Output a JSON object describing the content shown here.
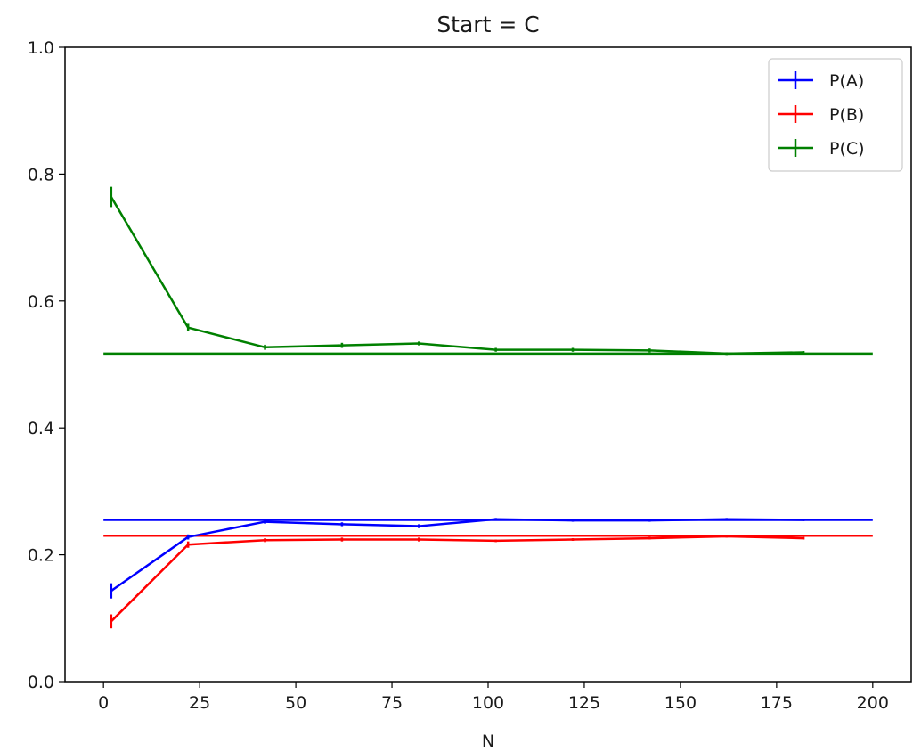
{
  "chart_data": {
    "type": "line",
    "title": "Start = C",
    "xlabel": "N",
    "ylabel": "",
    "xlim": [
      -10,
      210
    ],
    "ylim": [
      0,
      1.0
    ],
    "xticks": [
      0,
      25,
      50,
      75,
      100,
      125,
      150,
      175,
      200
    ],
    "yticks": [
      0.0,
      0.2,
      0.4,
      0.6,
      0.8,
      1.0
    ],
    "xtick_labels": [
      "0",
      "25",
      "50",
      "75",
      "100",
      "125",
      "150",
      "175",
      "200"
    ],
    "ytick_labels": [
      "0.0",
      "0.2",
      "0.4",
      "0.6",
      "0.8",
      "1.0"
    ],
    "grid": false,
    "legend_position": "top-right",
    "x": [
      2,
      22,
      42,
      62,
      82,
      102,
      122,
      142,
      162,
      182
    ],
    "series": [
      {
        "name": "P(A)",
        "color": "#0000ff",
        "values": [
          0.143,
          0.228,
          0.252,
          0.248,
          0.245,
          0.256,
          0.254,
          0.254,
          0.256,
          0.255
        ],
        "errors": [
          0.012,
          0.004,
          0.003,
          0.003,
          0.003,
          0.002,
          0.002,
          0.002,
          0.002,
          0.002
        ],
        "reference": 0.255
      },
      {
        "name": "P(B)",
        "color": "#ff0000",
        "values": [
          0.095,
          0.216,
          0.223,
          0.224,
          0.224,
          0.222,
          0.224,
          0.226,
          0.229,
          0.226
        ],
        "errors": [
          0.011,
          0.005,
          0.003,
          0.003,
          0.003,
          0.002,
          0.002,
          0.002,
          0.002,
          0.002
        ],
        "reference": 0.23
      },
      {
        "name": "P(C)",
        "color": "#008000",
        "values": [
          0.764,
          0.558,
          0.527,
          0.53,
          0.533,
          0.523,
          0.523,
          0.522,
          0.517,
          0.519
        ],
        "errors": [
          0.016,
          0.006,
          0.004,
          0.004,
          0.003,
          0.003,
          0.003,
          0.003,
          0.002,
          0.002
        ],
        "reference": 0.517
      }
    ],
    "reference_x_range": [
      0,
      200
    ]
  }
}
